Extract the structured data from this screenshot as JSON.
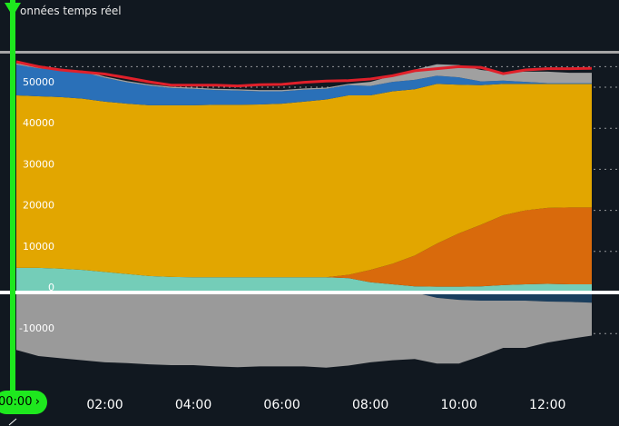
{
  "title": "onnées temps réel",
  "cursor": {
    "time_label": "00:00",
    "chevron": "chevron-right-icon"
  },
  "colors": {
    "background": "#111820",
    "cursor": "#1ee81e",
    "nuclear": "#e2a600",
    "gas": "#d96a0c",
    "solar": "#d96a0c",
    "hydro": "#2a70b8",
    "other": "#74cdb8",
    "exchanges": "#9a9a9a",
    "pumping": "#1a3e5e",
    "consumption": "#e0202a"
  },
  "chart_data": {
    "type": "area",
    "title": "onnées temps réel",
    "x_tick_labels": [
      "02:00",
      "04:00",
      "06:00",
      "08:00",
      "10:00",
      "12:00"
    ],
    "y_tick_labels": [
      "50000",
      "40000",
      "30000",
      "20000",
      "10000",
      "0",
      "-10000"
    ],
    "ylim": [
      -19000,
      57000
    ],
    "x": [
      "00:00",
      "00:30",
      "01:00",
      "01:30",
      "02:00",
      "02:30",
      "03:00",
      "03:30",
      "04:00",
      "04:30",
      "05:00",
      "05:30",
      "06:00",
      "06:30",
      "07:00",
      "07:30",
      "08:00",
      "08:30",
      "09:00",
      "09:30",
      "10:00",
      "10:30",
      "11:00",
      "11:30",
      "12:00",
      "12:30",
      "12:45"
    ],
    "series": [
      {
        "key": "base",
        "values": [
          6000,
          6000,
          5800,
          5500,
          5000,
          4500,
          4000,
          3800,
          3700,
          3700,
          3700,
          3700,
          3700,
          3700,
          3700,
          3500,
          2500,
          2000,
          1500,
          1400,
          1400,
          1500,
          1800,
          2000,
          2100,
          2000,
          2000
        ]
      },
      {
        "key": "solar",
        "values": [
          0,
          0,
          0,
          0,
          0,
          0,
          0,
          0,
          0,
          0,
          0,
          0,
          0,
          0,
          0,
          800,
          3000,
          5000,
          7500,
          10500,
          13000,
          15000,
          17000,
          18000,
          18500,
          18700,
          18700
        ]
      },
      {
        "key": "mid",
        "values": [
          42000,
          41800,
          41800,
          41700,
          41500,
          41500,
          41600,
          41800,
          41900,
          42000,
          42000,
          42100,
          42300,
          42800,
          43300,
          43700,
          42500,
          42000,
          40500,
          38900,
          36200,
          34000,
          32000,
          30800,
          30200,
          30100,
          30100
        ]
      },
      {
        "key": "top",
        "values": [
          7500,
          6800,
          6500,
          6500,
          5800,
          5200,
          4800,
          4200,
          4000,
          3600,
          3500,
          3200,
          3000,
          2900,
          2600,
          2500,
          2300,
          2300,
          2300,
          2000,
          1800,
          900,
          800,
          500,
          200,
          200,
          200
        ]
      },
      {
        "key": "peak",
        "values": [
          300,
          300,
          300,
          300,
          300,
          300,
          300,
          300,
          300,
          300,
          300,
          300,
          300,
          300,
          300,
          300,
          1000,
          1500,
          2500,
          2800,
          3000,
          2800,
          2000,
          2500,
          2800,
          2500,
          2500
        ]
      },
      {
        "key": "exchanges",
        "values": [
          -14000,
          -15500,
          -16000,
          -16500,
          -17000,
          -17200,
          -17500,
          -17700,
          -17700,
          -18000,
          -18200,
          -18000,
          -18000,
          -18000,
          -18300,
          -17800,
          -17000,
          -16500,
          -16200,
          -16000,
          -15500,
          -13500,
          -11500,
          -11500,
          -10000,
          -9000,
          -8000
        ]
      },
      {
        "key": "pumping",
        "values": [
          0,
          0,
          0,
          0,
          0,
          0,
          0,
          0,
          0,
          0,
          0,
          0,
          0,
          0,
          0,
          0,
          0,
          0,
          0,
          -1300,
          -1800,
          -2000,
          -2000,
          -2000,
          -2200,
          -2300,
          -2500
        ]
      },
      {
        "key": "consumption",
        "values": [
          56200,
          55000,
          54200,
          53700,
          53200,
          52300,
          51300,
          50500,
          50500,
          50500,
          50300,
          50600,
          50700,
          51200,
          51500,
          51600,
          52000,
          52800,
          54000,
          54500,
          55000,
          54800,
          53300,
          54200,
          54500,
          54500,
          54600
        ]
      }
    ]
  }
}
